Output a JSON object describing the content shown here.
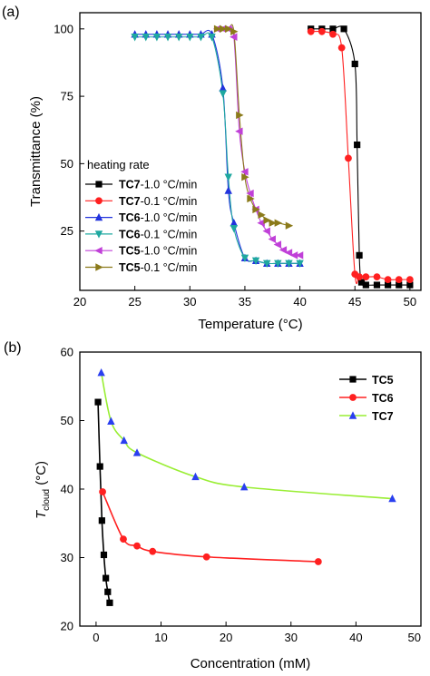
{
  "chart_data": [
    {
      "panel": "(a)",
      "type": "line",
      "xlabel": "Temperature (°C)",
      "ylabel": "Transmittance (%)",
      "xlim": [
        20,
        51
      ],
      "ylim": [
        3,
        106
      ],
      "xticks": [
        20,
        25,
        30,
        35,
        40,
        45,
        50
      ],
      "yticks": [
        25,
        50,
        75,
        100
      ],
      "legend_title": "heating rate",
      "legend_position": "bottom-left",
      "series": [
        {
          "name": "TC7-1.0 °C/min",
          "bold": "TC7",
          "suffix": "-1.0 °C/min",
          "color": "#000000",
          "marker": "square",
          "x": [
            41,
            42,
            43,
            44,
            45,
            45.2,
            45.4,
            45.6,
            46,
            47,
            48,
            49,
            50
          ],
          "y": [
            100,
            100,
            100,
            100,
            87,
            57,
            16,
            6,
            5,
            5,
            5,
            5,
            5
          ]
        },
        {
          "name": "TC7-0.1 °C/min",
          "bold": "TC7",
          "suffix": "-0.1 °C/min",
          "color": "#ff2020",
          "marker": "circle",
          "x": [
            41,
            42,
            43,
            43.8,
            44.4,
            45,
            45.4,
            46,
            47,
            48,
            49,
            50
          ],
          "y": [
            99,
            99,
            98,
            93,
            52,
            9,
            8,
            8,
            8,
            7,
            7,
            7
          ]
        },
        {
          "name": "TC6-1.0 °C/min",
          "bold": "TC6",
          "suffix": "-1.0 °C/min",
          "color": "#2233dd",
          "marker": "triangle-up",
          "x": [
            25,
            26,
            27,
            28,
            29,
            30,
            31,
            32,
            33,
            33.5,
            34,
            35,
            36,
            37,
            38,
            39,
            40
          ],
          "y": [
            98,
            98,
            98,
            98,
            98,
            98,
            98,
            98,
            78,
            40,
            28,
            15,
            14,
            13,
            13,
            13,
            13
          ]
        },
        {
          "name": "TC6-0.1 °C/min",
          "bold": "TC6",
          "suffix": "-0.1 °C/min",
          "color": "#1fa8a0",
          "marker": "triangle-down",
          "x": [
            25,
            26,
            27,
            28,
            29,
            30,
            31,
            32,
            33,
            33.5,
            34,
            35,
            36,
            37,
            38,
            39,
            40
          ],
          "y": [
            97,
            97,
            97,
            97,
            97,
            97,
            97,
            97,
            76,
            45,
            26,
            15,
            14,
            13,
            13,
            13,
            13
          ]
        },
        {
          "name": "TC5-1.0 °C/min",
          "bold": "TC5",
          "suffix": "-1.0 °C/min",
          "color": "#c040d8",
          "marker": "triangle-left",
          "x": [
            32.5,
            33,
            33.5,
            34,
            34.5,
            35,
            35.5,
            36,
            36.5,
            37,
            37.5,
            38,
            38.5,
            39,
            39.5,
            40
          ],
          "y": [
            100,
            100,
            100,
            97,
            62,
            47,
            39,
            33,
            28,
            25,
            22,
            20,
            18,
            17,
            16,
            16
          ]
        },
        {
          "name": "TC5-0.1 °C/min",
          "bold": "TC5",
          "suffix": "-0.1 °C/min",
          "color": "#8b7a1a",
          "marker": "triangle-right",
          "x": [
            32.5,
            33,
            33.5,
            34,
            34.5,
            35,
            35.5,
            36,
            36.5,
            37,
            37.5,
            38,
            39
          ],
          "y": [
            100,
            100,
            100,
            99,
            68,
            45,
            37,
            33,
            31,
            29,
            28,
            28,
            27
          ]
        }
      ]
    },
    {
      "panel": "(b)",
      "type": "line",
      "xlabel": "Concentration (mM)",
      "ylabel_main": "T",
      "ylabel_sub": "cloud",
      "ylabel_unit": " (°C)",
      "xlim": [
        -2.5,
        50
      ],
      "ylim": [
        20,
        60
      ],
      "xticks": [
        0,
        10,
        20,
        30,
        40,
        50
      ],
      "xtick_labels": [
        "0",
        "10",
        "20",
        "30",
        "40",
        "50"
      ],
      "yticks": [
        20,
        30,
        40,
        50,
        60
      ],
      "legend_position": "top-right",
      "series": [
        {
          "name": "TC5",
          "color": "#000000",
          "marker": "square",
          "x": [
            0.3,
            0.6,
            0.9,
            1.2,
            1.5,
            1.8,
            2.1
          ],
          "y": [
            52.7,
            43.3,
            35.4,
            30.4,
            27.0,
            25.0,
            23.4
          ]
        },
        {
          "name": "TC6",
          "color": "#ff2020",
          "marker": "circle",
          "x": [
            1.0,
            4.2,
            6.3,
            8.7,
            17.0,
            34.2
          ],
          "y": [
            39.6,
            32.7,
            31.7,
            30.9,
            30.1,
            29.4
          ]
        },
        {
          "name": "TC7",
          "color": "#2a3ff0",
          "line_color": "#99ee33",
          "marker": "triangle-up",
          "x": [
            0.8,
            2.3,
            4.3,
            6.3,
            15.3,
            22.8,
            45.6
          ],
          "y": [
            57.0,
            49.9,
            47.1,
            45.3,
            41.8,
            40.3,
            38.6
          ]
        }
      ]
    }
  ]
}
